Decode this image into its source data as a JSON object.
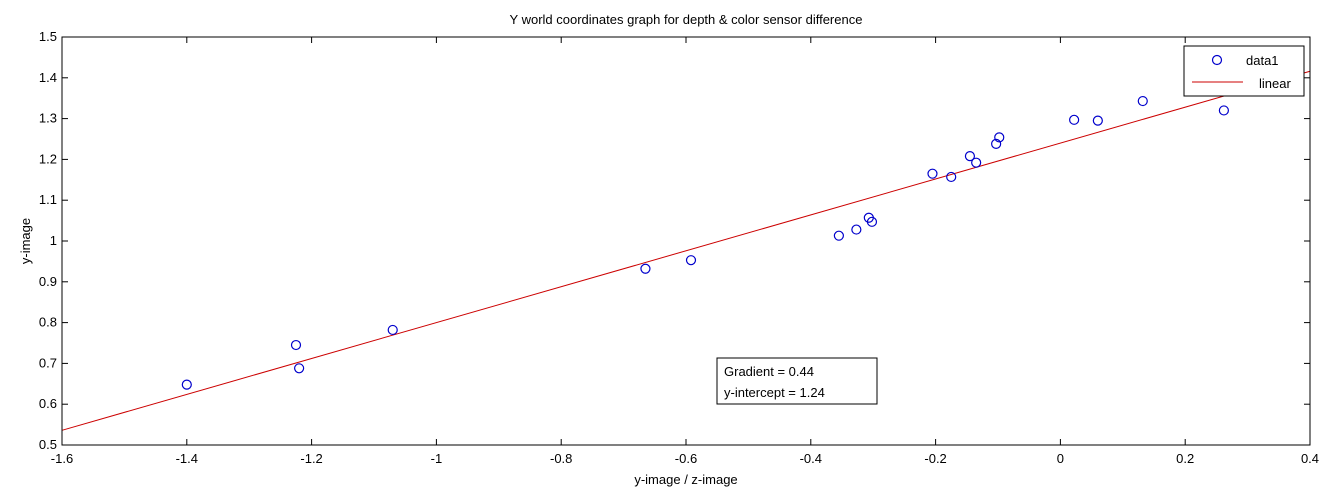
{
  "chart_data": {
    "type": "scatter",
    "title": "Y world coordinates graph for depth & color sensor difference",
    "xlabel": "y-image / z-image",
    "ylabel": "y-image",
    "xlim": [
      -1.6,
      0.4
    ],
    "ylim": [
      0.5,
      1.5
    ],
    "xticks": [
      -1.6,
      -1.4,
      -1.2,
      -1,
      -0.8,
      -0.6,
      -0.4,
      -0.2,
      0,
      0.2,
      0.4
    ],
    "xtick_labels": [
      "-1.6",
      "-1.4",
      "-1.2",
      "-1",
      "-0.8",
      "-0.6",
      "-0.4",
      "-0.2",
      "0",
      "0.2",
      "0.4"
    ],
    "yticks": [
      0.5,
      0.6,
      0.7,
      0.8,
      0.9,
      1,
      1.1,
      1.2,
      1.3,
      1.4,
      1.5
    ],
    "ytick_labels": [
      "0.5",
      "0.6",
      "0.7",
      "0.8",
      "0.9",
      "1",
      "1.1",
      "1.2",
      "1.3",
      "1.4",
      "1.5"
    ],
    "grid": false,
    "legend_position": "top-right",
    "series": [
      {
        "name": "data1",
        "type": "scatter",
        "marker": "open-circle",
        "color": "#0000cc",
        "x": [
          -1.4,
          -1.225,
          -1.22,
          -1.07,
          -0.665,
          -0.592,
          -0.355,
          -0.327,
          -0.307,
          -0.302,
          -0.205,
          -0.175,
          -0.145,
          -0.135,
          -0.103,
          -0.098,
          0.022,
          0.06,
          0.132,
          0.262
        ],
        "y": [
          0.648,
          0.745,
          0.688,
          0.782,
          0.932,
          0.953,
          1.013,
          1.028,
          1.057,
          1.047,
          1.165,
          1.157,
          1.208,
          1.192,
          1.238,
          1.254,
          1.297,
          1.295,
          1.343,
          1.32
        ]
      },
      {
        "name": "linear",
        "type": "line",
        "color": "#cc0000",
        "x": [
          -1.6,
          0.4
        ],
        "y": [
          0.536,
          1.416
        ]
      }
    ],
    "annotations": [
      "Gradient = 0.44",
      "y-intercept = 1.24"
    ]
  }
}
